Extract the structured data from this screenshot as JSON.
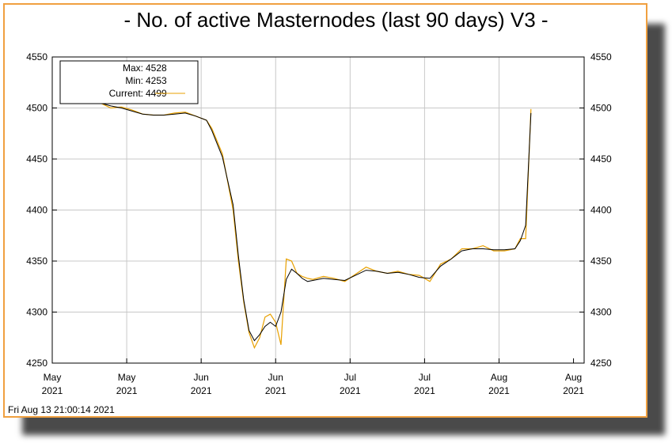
{
  "chart_data": {
    "type": "line",
    "title": "- No. of active Masternodes (last 90 days) V3 -",
    "timestamp": "Fri Aug 13 21:00:14 2021",
    "xlabel": "",
    "ylabel": "",
    "ylim": [
      4250,
      4550
    ],
    "yticks": [
      4250,
      4300,
      4350,
      4400,
      4450,
      4500,
      4550
    ],
    "xlim": [
      "2021-05-15",
      "2021-08-23"
    ],
    "xticks": [
      {
        "date": "2021-05-15",
        "month": "May",
        "year": "2021"
      },
      {
        "date": "2021-05-29",
        "month": "May",
        "year": "2021"
      },
      {
        "date": "2021-06-12",
        "month": "Jun",
        "year": "2021"
      },
      {
        "date": "2021-06-26",
        "month": "Jun",
        "year": "2021"
      },
      {
        "date": "2021-07-10",
        "month": "Jul",
        "year": "2021"
      },
      {
        "date": "2021-07-24",
        "month": "Jul",
        "year": "2021"
      },
      {
        "date": "2021-08-07",
        "month": "Aug",
        "year": "2021"
      },
      {
        "date": "2021-08-21",
        "month": "Aug",
        "year": "2021"
      }
    ],
    "grid": true,
    "legend_position": "top-left",
    "legend": {
      "max_label": "Max:",
      "max_value": "4528",
      "min_label": "Min:",
      "min_value": "4253",
      "current_label": "Current:",
      "current_value": "4499"
    },
    "colors": {
      "raw": "#e8a000",
      "smooth": "#000000",
      "frame": "#f0a040",
      "grid": "#c8c8c8"
    },
    "series": [
      {
        "style": "raw",
        "x": [
          "2021-05-18",
          "2021-05-20",
          "2021-05-22",
          "2021-05-24",
          "2021-05-26",
          "2021-05-28",
          "2021-05-30",
          "2021-06-01",
          "2021-06-03",
          "2021-06-05",
          "2021-06-07",
          "2021-06-09",
          "2021-06-11",
          "2021-06-13",
          "2021-06-14",
          "2021-06-16",
          "2021-06-18",
          "2021-06-19",
          "2021-06-20",
          "2021-06-21",
          "2021-06-22",
          "2021-06-23",
          "2021-06-24",
          "2021-06-25",
          "2021-06-26",
          "2021-06-27",
          "2021-06-28",
          "2021-06-29",
          "2021-06-30",
          "2021-07-01",
          "2021-07-02",
          "2021-07-03",
          "2021-07-05",
          "2021-07-07",
          "2021-07-09",
          "2021-07-11",
          "2021-07-13",
          "2021-07-15",
          "2021-07-17",
          "2021-07-19",
          "2021-07-21",
          "2021-07-23",
          "2021-07-25",
          "2021-07-27",
          "2021-07-29",
          "2021-07-31",
          "2021-08-02",
          "2021-08-04",
          "2021-08-06",
          "2021-08-08",
          "2021-08-10",
          "2021-08-11",
          "2021-08-12",
          "2021-08-13"
        ],
        "values": [
          4527,
          4520,
          4515,
          4505,
          4500,
          4501,
          4498,
          4494,
          4493,
          4493,
          4495,
          4496,
          4492,
          4488,
          4480,
          4455,
          4400,
          4350,
          4310,
          4280,
          4265,
          4275,
          4295,
          4298,
          4290,
          4268,
          4352,
          4350,
          4338,
          4335,
          4333,
          4332,
          4335,
          4333,
          4330,
          4337,
          4344,
          4340,
          4338,
          4340,
          4337,
          4336,
          4330,
          4347,
          4352,
          4362,
          4362,
          4365,
          4360,
          4360,
          4362,
          4372,
          4372,
          4499
        ]
      },
      {
        "style": "smooth",
        "x": [
          "2021-05-18",
          "2021-05-20",
          "2021-05-22",
          "2021-05-24",
          "2021-05-26",
          "2021-05-28",
          "2021-05-30",
          "2021-06-01",
          "2021-06-03",
          "2021-06-05",
          "2021-06-07",
          "2021-06-09",
          "2021-06-11",
          "2021-06-13",
          "2021-06-14",
          "2021-06-16",
          "2021-06-18",
          "2021-06-19",
          "2021-06-20",
          "2021-06-21",
          "2021-06-22",
          "2021-06-23",
          "2021-06-24",
          "2021-06-25",
          "2021-06-26",
          "2021-06-27",
          "2021-06-28",
          "2021-06-29",
          "2021-06-30",
          "2021-07-01",
          "2021-07-02",
          "2021-07-03",
          "2021-07-05",
          "2021-07-07",
          "2021-07-09",
          "2021-07-11",
          "2021-07-13",
          "2021-07-15",
          "2021-07-17",
          "2021-07-19",
          "2021-07-21",
          "2021-07-23",
          "2021-07-25",
          "2021-07-27",
          "2021-07-29",
          "2021-07-31",
          "2021-08-02",
          "2021-08-04",
          "2021-08-06",
          "2021-08-08",
          "2021-08-10",
          "2021-08-11",
          "2021-08-12",
          "2021-08-13"
        ],
        "values": [
          4525,
          4518,
          4512,
          4505,
          4502,
          4500,
          4497,
          4494,
          4493,
          4493,
          4494,
          4495,
          4492,
          4488,
          4478,
          4452,
          4405,
          4355,
          4312,
          4282,
          4272,
          4278,
          4286,
          4290,
          4286,
          4300,
          4332,
          4342,
          4338,
          4333,
          4330,
          4331,
          4333,
          4332,
          4331,
          4336,
          4341,
          4340,
          4338,
          4339,
          4337,
          4334,
          4333,
          4345,
          4352,
          4360,
          4362,
          4362,
          4361,
          4361,
          4362,
          4370,
          4385,
          4495
        ]
      }
    ]
  }
}
